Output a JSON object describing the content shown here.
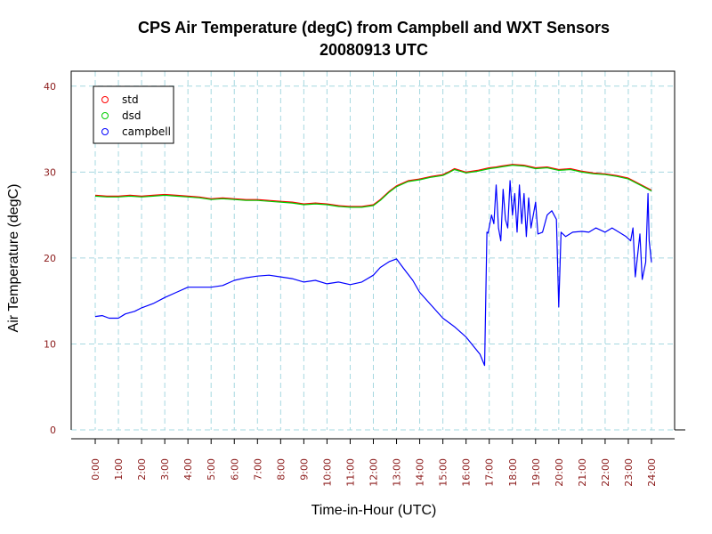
{
  "chart_data": {
    "type": "line",
    "title": "CPS Air Temperature (degC) from Campbell and WXT Sensors",
    "subtitle": "20080913  UTC",
    "xlabel": "Time-in-Hour (UTC)",
    "ylabel": "Air Temperature (degC)",
    "xlim": [
      0,
      24
    ],
    "ylim": [
      0,
      40
    ],
    "x_ticks": [
      "0:00",
      "1:00",
      "2:00",
      "3:00",
      "4:00",
      "5:00",
      "6:00",
      "7:00",
      "8:00",
      "9:00",
      "10:00",
      "11:00",
      "12:00",
      "13:00",
      "14:00",
      "15:00",
      "16:00",
      "17:00",
      "18:00",
      "19:00",
      "20:00",
      "21:00",
      "22:00",
      "23:00",
      "24:00"
    ],
    "y_ticks": [
      "0",
      "10",
      "20",
      "30",
      "40"
    ],
    "grid": true,
    "legend_position": "top-left",
    "colors": {
      "std": "#ff0000",
      "dsd": "#00cc00",
      "campbell": "#0000ff",
      "grid": "#a6d8e0",
      "tick": "#8b1a1a"
    },
    "series": [
      {
        "name": "std",
        "x": [
          0,
          0.5,
          1,
          1.5,
          2,
          2.5,
          3,
          3.5,
          4,
          4.5,
          5,
          5.5,
          6,
          6.5,
          7,
          7.5,
          8,
          8.5,
          9,
          9.5,
          10,
          10.5,
          11,
          11.5,
          12,
          12.3,
          12.7,
          13,
          13.5,
          14,
          14.5,
          15,
          15.3,
          15.5,
          16,
          16.5,
          17,
          17.3,
          17.5,
          18,
          18.5,
          19,
          19.5,
          20,
          20.5,
          21,
          21.5,
          22,
          22.5,
          23,
          23.5,
          24
        ],
        "values": [
          27.3,
          27.2,
          27.2,
          27.3,
          27.2,
          27.3,
          27.4,
          27.3,
          27.2,
          27.1,
          26.9,
          27.0,
          26.9,
          26.8,
          26.8,
          26.7,
          26.6,
          26.5,
          26.3,
          26.4,
          26.3,
          26.1,
          26.0,
          26.0,
          26.2,
          26.8,
          27.8,
          28.4,
          29.0,
          29.2,
          29.5,
          29.7,
          30.1,
          30.4,
          30.0,
          30.2,
          30.5,
          30.6,
          30.7,
          30.9,
          30.8,
          30.5,
          30.6,
          30.3,
          30.4,
          30.1,
          29.9,
          29.8,
          29.6,
          29.3,
          28.6,
          27.9
        ]
      },
      {
        "name": "dsd",
        "x": [
          0,
          0.5,
          1,
          1.5,
          2,
          2.5,
          3,
          3.5,
          4,
          4.5,
          5,
          5.5,
          6,
          6.5,
          7,
          7.5,
          8,
          8.5,
          9,
          9.5,
          10,
          10.5,
          11,
          11.5,
          12,
          12.3,
          12.7,
          13,
          13.5,
          14,
          14.5,
          15,
          15.3,
          15.5,
          16,
          16.5,
          17,
          17.3,
          17.5,
          18,
          18.5,
          19,
          19.5,
          20,
          20.5,
          21,
          21.5,
          22,
          22.5,
          23,
          23.5,
          24
        ],
        "values": [
          27.2,
          27.1,
          27.1,
          27.2,
          27.1,
          27.2,
          27.3,
          27.2,
          27.1,
          27.0,
          26.8,
          26.9,
          26.8,
          26.7,
          26.7,
          26.6,
          26.5,
          26.4,
          26.2,
          26.3,
          26.2,
          26.0,
          25.9,
          25.9,
          26.1,
          26.7,
          27.7,
          28.3,
          28.9,
          29.1,
          29.4,
          29.6,
          30.0,
          30.3,
          29.9,
          30.1,
          30.4,
          30.5,
          30.6,
          30.8,
          30.7,
          30.4,
          30.5,
          30.2,
          30.3,
          30.0,
          29.8,
          29.7,
          29.5,
          29.2,
          28.5,
          27.8
        ]
      },
      {
        "name": "campbell",
        "x": [
          0,
          0.3,
          0.6,
          1.0,
          1.3,
          1.7,
          2.0,
          2.5,
          3.0,
          3.5,
          4.0,
          4.5,
          5.0,
          5.5,
          6.0,
          6.5,
          7.0,
          7.5,
          8.0,
          8.5,
          9.0,
          9.5,
          10.0,
          10.5,
          11.0,
          11.5,
          12.0,
          12.3,
          12.7,
          13.0,
          13.3,
          13.7,
          14.0,
          14.5,
          15.0,
          15.5,
          16.0,
          16.3,
          16.6,
          16.8,
          16.9,
          16.95,
          17.1,
          17.2,
          17.3,
          17.4,
          17.5,
          17.6,
          17.7,
          17.8,
          17.9,
          18.0,
          18.1,
          18.2,
          18.3,
          18.4,
          18.5,
          18.6,
          18.7,
          18.8,
          18.9,
          19.0,
          19.1,
          19.3,
          19.5,
          19.7,
          19.9,
          20.0,
          20.1,
          20.3,
          20.6,
          21.0,
          21.3,
          21.6,
          22.0,
          22.3,
          22.6,
          22.9,
          23.1,
          23.2,
          23.3,
          23.5,
          23.6,
          23.75,
          23.85,
          23.9,
          24.0
        ],
        "values": [
          13.2,
          13.3,
          13.0,
          13.0,
          13.5,
          13.8,
          14.2,
          14.7,
          15.4,
          16.0,
          16.6,
          16.6,
          16.6,
          16.8,
          17.4,
          17.7,
          17.9,
          18.0,
          17.8,
          17.6,
          17.2,
          17.4,
          17.0,
          17.2,
          16.9,
          17.2,
          18.0,
          18.9,
          19.6,
          19.9,
          18.8,
          17.4,
          16.0,
          14.5,
          13.0,
          12.0,
          10.8,
          9.8,
          8.8,
          7.5,
          23.0,
          22.9,
          25.0,
          24.0,
          28.5,
          23.5,
          22.0,
          28.0,
          24.5,
          23.5,
          29.0,
          25.0,
          27.5,
          23.0,
          28.5,
          24.0,
          27.5,
          22.5,
          27.0,
          23.5,
          25.0,
          26.5,
          22.8,
          23.0,
          25.0,
          25.5,
          24.5,
          14.3,
          23.0,
          22.5,
          23.0,
          23.1,
          23.0,
          23.5,
          23.0,
          23.5,
          23.0,
          22.5,
          22.0,
          23.5,
          17.8,
          22.8,
          17.5,
          19.5,
          27.5,
          22.0,
          19.5
        ]
      }
    ]
  }
}
